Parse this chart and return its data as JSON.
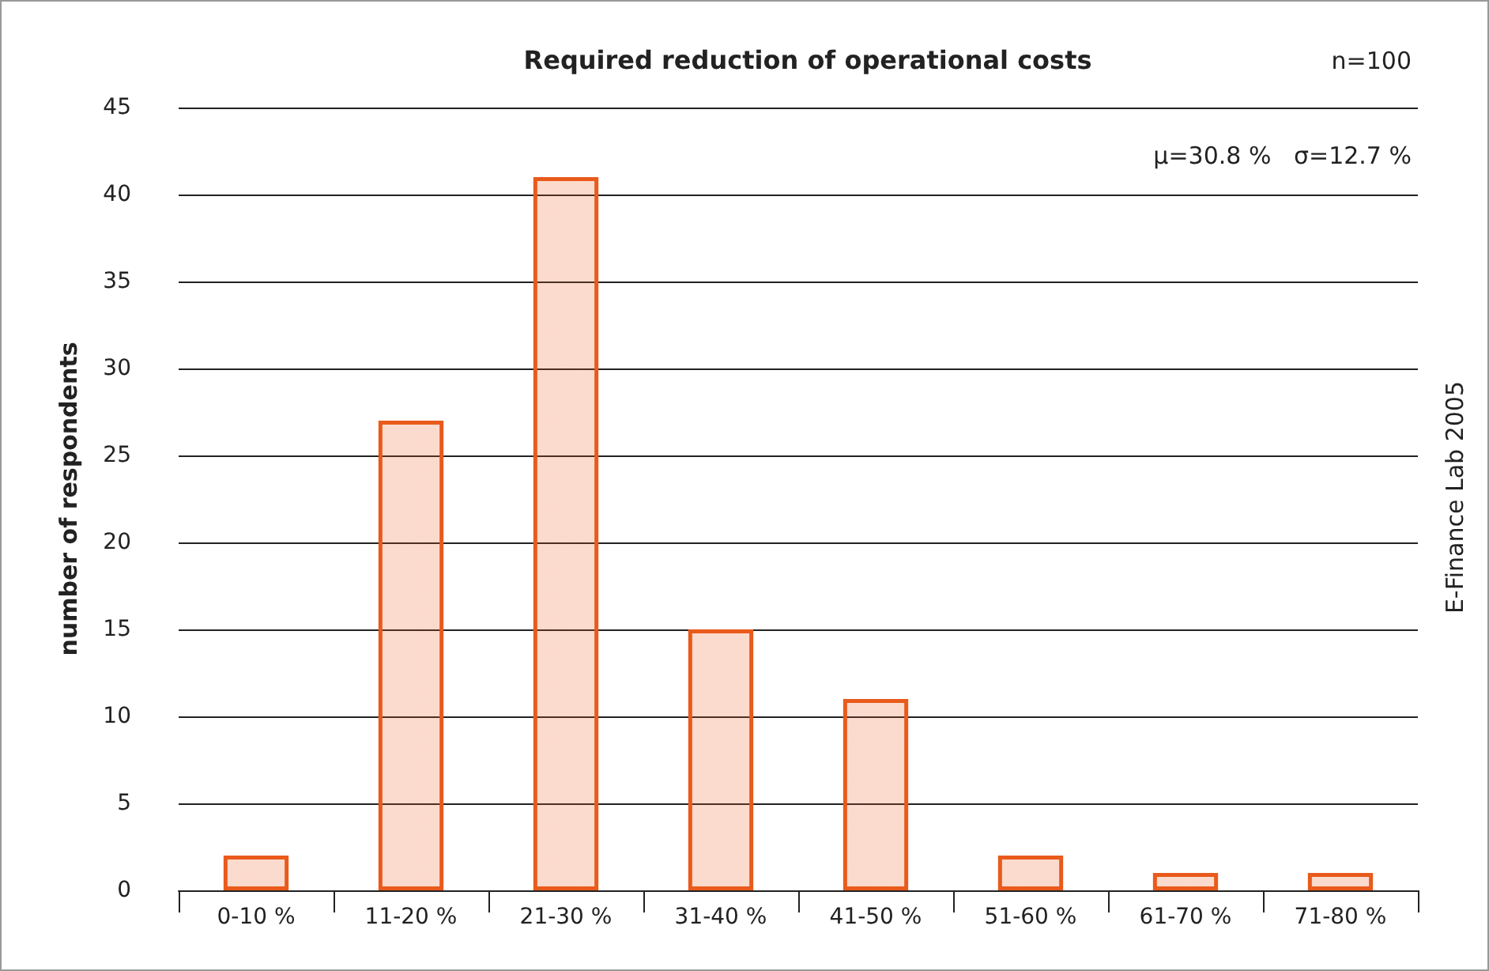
{
  "chart_data": {
    "type": "bar",
    "title": "Required reduction of operational costs",
    "ylabel": "number of respondents",
    "categories": [
      "0-10 %",
      "11-20 %",
      "21-30 %",
      "31-40 %",
      "41-50 %",
      "51-60 %",
      "61-70 %",
      "71-80 %"
    ],
    "values": [
      2,
      27,
      41,
      15,
      11,
      2,
      1,
      1
    ],
    "color": "#e95a1b",
    "ylim": [
      0,
      45
    ],
    "yticks": [
      0,
      5,
      10,
      15,
      20,
      25,
      30,
      35,
      40,
      45
    ],
    "grid": "y",
    "annotations": [
      "n=100",
      "μ=30.8 %   σ=12.7 %",
      "E-Finance Lab 2005"
    ]
  }
}
